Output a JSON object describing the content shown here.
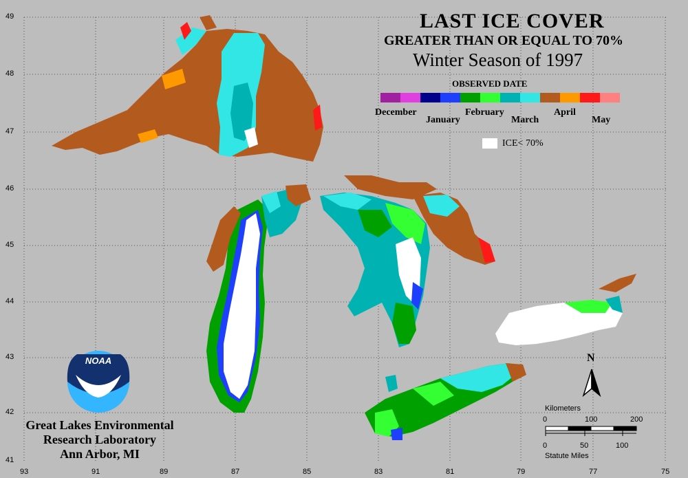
{
  "title": "LAST ICE COVER",
  "subtitle": "GREATER THAN OR EQUAL TO 70%",
  "season": "Winter Season of 1997",
  "legend": {
    "heading": "OBSERVED DATE",
    "months": [
      "December",
      "January",
      "February",
      "March",
      "April",
      "May"
    ],
    "colors": [
      "#a020a0",
      "#e040e0",
      "#00008b",
      "#1f3fff",
      "#00a000",
      "#33ff33",
      "#00b3b3",
      "#33e6e6",
      "#b35a1f",
      "#ff9900",
      "#ff1a1a",
      "#ff8080"
    ],
    "no_ice_label": "ICE< 70%"
  },
  "axes": {
    "latitudes": [
      "49",
      "48",
      "47",
      "46",
      "45",
      "44",
      "43",
      "42",
      "41"
    ],
    "longitudes": [
      "93",
      "91",
      "89",
      "87",
      "85",
      "83",
      "81",
      "79",
      "77",
      "75"
    ]
  },
  "logo": {
    "text": "NOAA"
  },
  "institution": {
    "line1": "Great Lakes Environmental",
    "line2": "Research Laboratory",
    "line3": "Ann Arbor, MI"
  },
  "north_arrow": {
    "label": "N"
  },
  "scale_bar": {
    "km_label": "Kilometers",
    "km_ticks": [
      "0",
      "100",
      "200"
    ],
    "mi_label": "Statute Miles",
    "mi_ticks": [
      "0",
      "50",
      "100"
    ]
  }
}
